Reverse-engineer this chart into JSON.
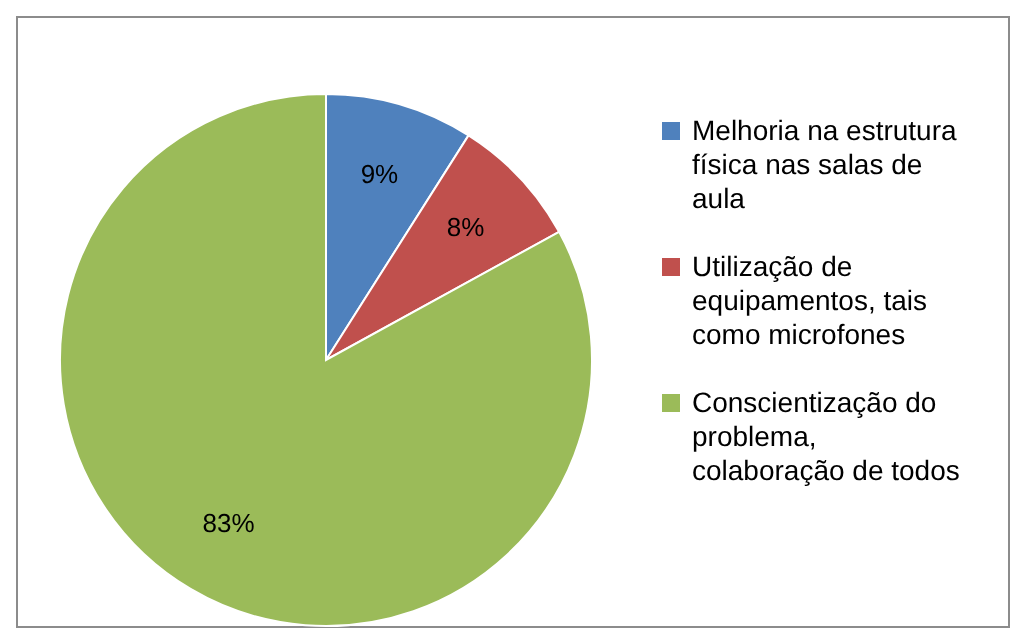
{
  "chart_data": {
    "type": "pie",
    "categories": [
      "Melhoria na estrutura física nas salas de aula",
      "Utilização de equipamentos,  tais como microfones",
      "Conscientização do problema, colaboração de todos"
    ],
    "values": [
      9,
      8,
      83
    ],
    "colors": [
      "#4f81bd",
      "#c0504d",
      "#9bbb59"
    ],
    "value_labels": [
      "9%",
      "8%",
      "83%"
    ],
    "legend": "right"
  }
}
